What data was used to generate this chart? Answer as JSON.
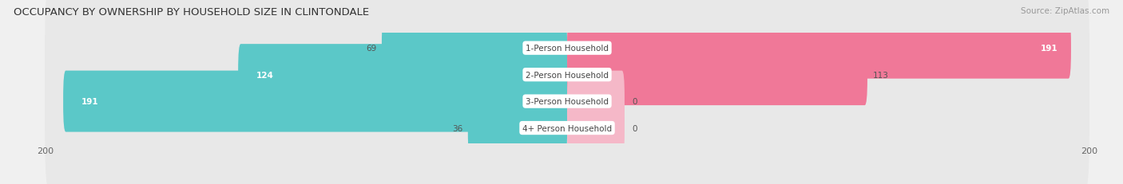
{
  "title": "OCCUPANCY BY OWNERSHIP BY HOUSEHOLD SIZE IN CLINTONDALE",
  "source": "Source: ZipAtlas.com",
  "categories": [
    "1-Person Household",
    "2-Person Household",
    "3-Person Household",
    "4+ Person Household"
  ],
  "owner_values": [
    69,
    124,
    191,
    36
  ],
  "renter_values": [
    191,
    113,
    0,
    0
  ],
  "renter_stub_values": [
    20,
    20,
    20,
    20
  ],
  "owner_color": "#5BC8C8",
  "renter_color": "#F07898",
  "renter_stub_color": "#F5B8C8",
  "axis_max": 200,
  "axis_min": -200,
  "bg_color": "#f0f0f0",
  "row_bg_color": "#e4e4e4",
  "row_bg_even": "#e8e8e8",
  "label_bg_color": "#ffffff",
  "title_fontsize": 9.5,
  "source_fontsize": 7.5,
  "tick_fontsize": 8,
  "bar_label_fontsize": 7.5,
  "cat_label_fontsize": 7.5
}
